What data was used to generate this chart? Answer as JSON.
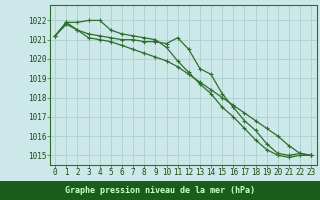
{
  "title": "Graphe pression niveau de la mer (hPa)",
  "background_color": "#cce8e8",
  "plot_bg_color": "#cce8e8",
  "bottom_bar_color": "#1a5c1a",
  "title_color": "#ccffcc",
  "grid_color": "#aad0d0",
  "line_color": "#2d6e2d",
  "marker_color": "#2d6e2d",
  "tick_color": "#1a4a1a",
  "xlim": [
    -0.5,
    23.5
  ],
  "ylim": [
    1014.5,
    1022.8
  ],
  "yticks": [
    1015,
    1016,
    1017,
    1018,
    1019,
    1020,
    1021,
    1022
  ],
  "xticks": [
    0,
    1,
    2,
    3,
    4,
    5,
    6,
    7,
    8,
    9,
    10,
    11,
    12,
    13,
    14,
    15,
    16,
    17,
    18,
    19,
    20,
    21,
    22,
    23
  ],
  "series1": [
    1021.2,
    1021.9,
    1021.9,
    1022.0,
    1022.0,
    1021.5,
    1021.3,
    1021.2,
    1021.1,
    1021.0,
    1020.6,
    1019.9,
    1019.3,
    1018.7,
    1018.2,
    1017.5,
    1017.0,
    1016.4,
    1015.8,
    1015.3,
    1015.0,
    1014.9,
    1015.0,
    1015.0
  ],
  "series2": [
    1021.2,
    1021.9,
    1021.5,
    1021.3,
    1021.2,
    1021.1,
    1021.0,
    1021.0,
    1020.9,
    1020.9,
    1020.8,
    1021.1,
    1020.5,
    1019.5,
    1019.2,
    1018.2,
    1017.5,
    1016.8,
    1016.3,
    1015.6,
    1015.1,
    1015.0,
    1015.1,
    1015.0
  ],
  "series3": [
    1021.2,
    1021.8,
    1021.5,
    1021.1,
    1021.0,
    1020.9,
    1020.7,
    1020.5,
    1020.3,
    1020.1,
    1019.9,
    1019.6,
    1019.2,
    1018.8,
    1018.4,
    1018.0,
    1017.6,
    1017.2,
    1016.8,
    1016.4,
    1016.0,
    1015.5,
    1015.1,
    1015.0
  ],
  "label_fontsize": 6.0,
  "tick_fontsize": 5.5
}
